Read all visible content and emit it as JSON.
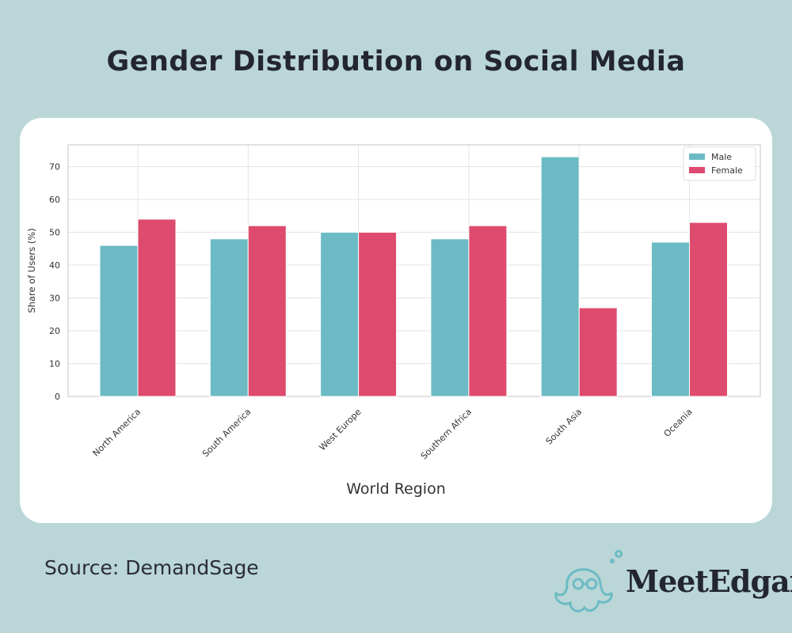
{
  "title": "Gender Distribution on Social Media",
  "source": "Source: DemandSage",
  "logo": {
    "text": "MeetEdgar",
    "icon": "octopus-icon"
  },
  "colors": {
    "male": "#6cbbc4",
    "female": "#de4b6e",
    "background": "#bad6d6"
  },
  "chart_data": {
    "type": "bar",
    "categories": [
      "North America",
      "South America",
      "West Europe",
      "Southern Africa",
      "South Asia",
      "Oceania"
    ],
    "series": [
      {
        "name": "Male",
        "values": [
          46,
          48,
          50,
          48,
          73,
          47
        ]
      },
      {
        "name": "Female",
        "values": [
          54,
          52,
          50,
          52,
          27,
          53
        ]
      }
    ],
    "xlabel": "World Region",
    "ylabel": "Share of Users (%)",
    "ylim": [
      0,
      76.65
    ],
    "yticks": [
      0,
      10,
      20,
      30,
      40,
      50,
      60,
      70
    ],
    "grid": true,
    "legend": "top-right"
  }
}
